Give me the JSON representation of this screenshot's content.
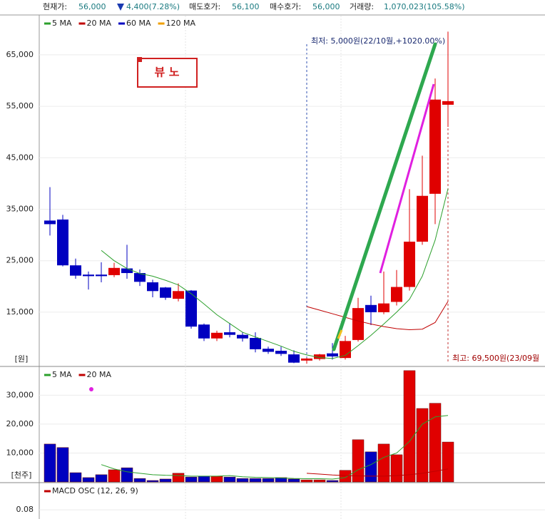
{
  "header": {
    "current_price_label": "현재가:",
    "current_price": "56,000",
    "change": "4,400(7.28%)",
    "ask_label": "매도호가:",
    "ask": "56,100",
    "bid_label": "매수호가:",
    "bid": "56,000",
    "volume_label": "거래량:",
    "volume": "1,070,023(105.58%)"
  },
  "chart_data": [
    {
      "type": "candlestick",
      "unit_label": "[원]",
      "up_color": "#e00000",
      "down_color": "#0000c0",
      "open": [
        32800,
        33000,
        24100,
        22300,
        22300,
        22200,
        23500,
        22600,
        20800,
        19800,
        17600,
        19200,
        12600,
        9900,
        11100,
        10600,
        10000,
        7900,
        7500,
        6800,
        5600,
        5900,
        7000,
        6100,
        9600,
        16400,
        15000,
        17000,
        19900,
        28700,
        38000,
        55300
      ],
      "high": [
        39300,
        33900,
        25400,
        22900,
        24700,
        24600,
        28100,
        23300,
        21300,
        19900,
        20600,
        19300,
        12800,
        11400,
        12900,
        11100,
        11100,
        8300,
        8300,
        7600,
        6100,
        6900,
        9000,
        10400,
        17800,
        18200,
        22900,
        23200,
        38900,
        45400,
        60400,
        69500
      ],
      "low": [
        29900,
        23900,
        21500,
        19400,
        20800,
        21800,
        21500,
        20100,
        17900,
        17400,
        17100,
        11800,
        9400,
        9400,
        10100,
        9300,
        7200,
        6900,
        6500,
        5100,
        5000,
        5600,
        5800,
        5800,
        9300,
        12500,
        14600,
        16300,
        19200,
        28100,
        32100,
        51000
      ],
      "close": [
        32100,
        24100,
        22100,
        22000,
        22000,
        23600,
        22600,
        20900,
        19100,
        17800,
        19100,
        12200,
        9900,
        11000,
        10600,
        9900,
        7800,
        7300,
        6900,
        5200,
        6000,
        6800,
        6400,
        9400,
        15800,
        15000,
        16700,
        19900,
        28700,
        37600,
        56300,
        56000
      ],
      "series": [
        {
          "name": "5 MA",
          "color": "#2ca02c",
          "values": [
            null,
            null,
            null,
            null,
            27000,
            25000,
            23500,
            22500,
            22000,
            21200,
            20300,
            18600,
            16600,
            14500,
            12800,
            11100,
            10200,
            9300,
            8400,
            7400,
            6700,
            6200,
            6000,
            6600,
            8500,
            10500,
            12700,
            15000,
            17500,
            22000,
            29000,
            39000
          ]
        },
        {
          "name": "20 MA",
          "color": "#c00000",
          "values": [
            null,
            null,
            null,
            null,
            null,
            null,
            null,
            null,
            null,
            null,
            null,
            null,
            null,
            null,
            null,
            null,
            null,
            null,
            null,
            null,
            16100,
            15400,
            14700,
            14000,
            13300,
            12700,
            12200,
            11800,
            11600,
            11700,
            13000,
            17100
          ]
        },
        {
          "name": "60 MA",
          "color": "#0000c0"
        },
        {
          "name": "120 MA",
          "color": "#f0a000"
        }
      ],
      "ylim": [
        4600,
        72600
      ],
      "yticks": [
        {
          "value": 15000,
          "label": "15,000"
        },
        {
          "value": 25000,
          "label": "25,000"
        },
        {
          "value": 35000,
          "label": "35,000"
        },
        {
          "value": 45000,
          "label": "45,000"
        },
        {
          "value": 55000,
          "label": "55,000"
        },
        {
          "value": 65000,
          "label": "65,000"
        }
      ],
      "grid": true,
      "annotations": [
        "뷰 노",
        "최저: 5,000원(22/10월,+1020.00%)",
        "최고: 69,500원(23/09월"
      ]
    },
    {
      "type": "bar",
      "unit_label": "[천주]",
      "values": [
        13100,
        11900,
        3200,
        1500,
        2500,
        4200,
        4900,
        1200,
        500,
        1000,
        3000,
        1700,
        2000,
        2000,
        1700,
        1200,
        1200,
        1200,
        1500,
        1000,
        700,
        700,
        500,
        4000,
        14600,
        10400,
        13100,
        9400,
        38500,
        25400,
        27200,
        13800
      ],
      "series": [
        {
          "name": "5 MA",
          "color": "#2ca02c",
          "values": [
            null,
            null,
            null,
            null,
            6000,
            4500,
            3500,
            3000,
            2500,
            2300,
            2200,
            2000,
            2000,
            2000,
            2200,
            1800,
            1600,
            1500,
            1400,
            1200,
            1100,
            1100,
            1000,
            1500,
            4200,
            6000,
            8500,
            10000,
            14000,
            20000,
            22500,
            23000
          ]
        },
        {
          "name": "20 MA",
          "color": "#c00000",
          "values": [
            null,
            null,
            null,
            null,
            null,
            null,
            null,
            null,
            null,
            null,
            null,
            null,
            null,
            null,
            null,
            null,
            null,
            null,
            null,
            null,
            3000,
            2700,
            2400,
            2200,
            2100,
            2000,
            2000,
            2200,
            2500,
            3000,
            3700,
            4500
          ]
        }
      ],
      "ylim": [
        0,
        39700
      ],
      "yticks": [
        {
          "value": 10000,
          "label": "10,000"
        },
        {
          "value": 20000,
          "label": "20,000"
        },
        {
          "value": 30000,
          "label": "30,000"
        }
      ],
      "grid": true
    },
    {
      "type": "line",
      "series": [
        {
          "name": "MACD OSC (12, 26, 9)",
          "color": "#c00000"
        }
      ],
      "ylim": [
        0.0755,
        0.093
      ],
      "yticks": [
        0.08
      ],
      "grid": true
    }
  ]
}
